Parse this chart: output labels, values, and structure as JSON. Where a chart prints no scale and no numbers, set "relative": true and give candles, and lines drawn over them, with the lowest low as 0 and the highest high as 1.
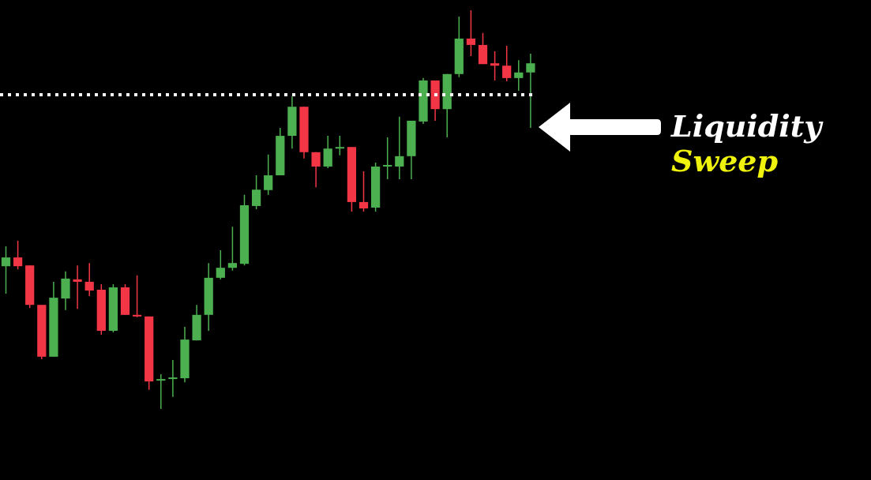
{
  "chart_data": {
    "type": "candlestick",
    "relative": true,
    "categories": [
      null,
      null,
      null,
      null,
      null,
      null,
      null,
      null,
      null,
      null,
      null,
      null,
      null,
      null,
      null,
      null,
      null,
      null,
      null,
      null,
      null,
      null,
      null,
      null,
      null,
      null,
      null,
      null,
      null,
      null,
      null,
      null,
      null,
      null,
      null,
      null,
      null,
      null,
      null,
      null,
      null,
      null,
      null,
      null,
      null
    ],
    "ohlc": [
      [
        0.358,
        0.408,
        0.289,
        0.38
      ],
      [
        0.38,
        0.422,
        0.35,
        0.358
      ],
      [
        0.36,
        0.36,
        0.253,
        0.261
      ],
      [
        0.261,
        0.261,
        0.125,
        0.131
      ],
      [
        0.131,
        0.319,
        0.131,
        0.279
      ],
      [
        0.277,
        0.345,
        0.248,
        0.327
      ],
      [
        0.325,
        0.36,
        0.251,
        0.319
      ],
      [
        0.319,
        0.366,
        0.283,
        0.297
      ],
      [
        0.299,
        0.313,
        0.186,
        0.196
      ],
      [
        0.196,
        0.313,
        0.192,
        0.305
      ],
      [
        0.305,
        0.313,
        0.236,
        0.236
      ],
      [
        0.236,
        0.335,
        0.23,
        0.232
      ],
      [
        0.232,
        0.232,
        0.048,
        0.069
      ],
      [
        0.071,
        0.087,
        0.0,
        0.075
      ],
      [
        0.077,
        0.123,
        0.03,
        0.079
      ],
      [
        0.077,
        0.206,
        0.067,
        0.174
      ],
      [
        0.172,
        0.261,
        0.172,
        0.236
      ],
      [
        0.236,
        0.366,
        0.196,
        0.329
      ],
      [
        0.329,
        0.398,
        0.325,
        0.354
      ],
      [
        0.354,
        0.457,
        0.347,
        0.366
      ],
      [
        0.364,
        0.537,
        0.36,
        0.511
      ],
      [
        0.509,
        0.586,
        0.501,
        0.55
      ],
      [
        0.549,
        0.638,
        0.537,
        0.586
      ],
      [
        0.586,
        0.705,
        0.586,
        0.685
      ],
      [
        0.685,
        0.784,
        0.653,
        0.758
      ],
      [
        0.758,
        0.758,
        0.628,
        0.644
      ],
      [
        0.644,
        0.644,
        0.556,
        0.608
      ],
      [
        0.608,
        0.685,
        0.604,
        0.653
      ],
      [
        0.655,
        0.685,
        0.636,
        0.657
      ],
      [
        0.657,
        0.657,
        0.495,
        0.519
      ],
      [
        0.519,
        0.596,
        0.495,
        0.503
      ],
      [
        0.505,
        0.618,
        0.495,
        0.608
      ],
      [
        0.61,
        0.681,
        0.576,
        0.612
      ],
      [
        0.608,
        0.733,
        0.576,
        0.634
      ],
      [
        0.634,
        0.723,
        0.576,
        0.723
      ],
      [
        0.721,
        0.83,
        0.715,
        0.824
      ],
      [
        0.824,
        0.824,
        0.723,
        0.752
      ],
      [
        0.752,
        0.84,
        0.681,
        0.84
      ],
      [
        0.84,
        0.984,
        0.832,
        0.929
      ],
      [
        0.929,
        1.0,
        0.885,
        0.913
      ],
      [
        0.913,
        0.943,
        0.865,
        0.865
      ],
      [
        0.867,
        0.897,
        0.824,
        0.861
      ],
      [
        0.861,
        0.911,
        0.822,
        0.83
      ],
      [
        0.83,
        0.875,
        0.798,
        0.844
      ],
      [
        0.844,
        0.891,
        0.705,
        0.867
      ]
    ],
    "colors": [
      "#4caf50",
      "#f23645",
      "#f23645",
      "#f23645",
      "#4caf50",
      "#4caf50",
      "#f23645",
      "#f23645",
      "#f23645",
      "#4caf50",
      "#f23645",
      "#f23645",
      "#f23645",
      "#4caf50",
      "#4caf50",
      "#4caf50",
      "#4caf50",
      "#4caf50",
      "#4caf50",
      "#4caf50",
      "#4caf50",
      "#4caf50",
      "#4caf50",
      "#4caf50",
      "#4caf50",
      "#f23645",
      "#f23645",
      "#4caf50",
      "#4caf50",
      "#f23645",
      "#f23645",
      "#4caf50",
      "#4caf50",
      "#4caf50",
      "#4caf50",
      "#4caf50",
      "#f23645",
      "#4caf50",
      "#4caf50",
      "#f23645",
      "#f23645",
      "#f23645",
      "#f23645",
      "#4caf50",
      "#4caf50"
    ],
    "ref_lines": [
      {
        "axis": "y",
        "value": 0.788,
        "color": "#ffffff",
        "line_style": "dotted"
      }
    ],
    "annotations": [
      "Liquidity",
      "Sweep"
    ]
  }
}
